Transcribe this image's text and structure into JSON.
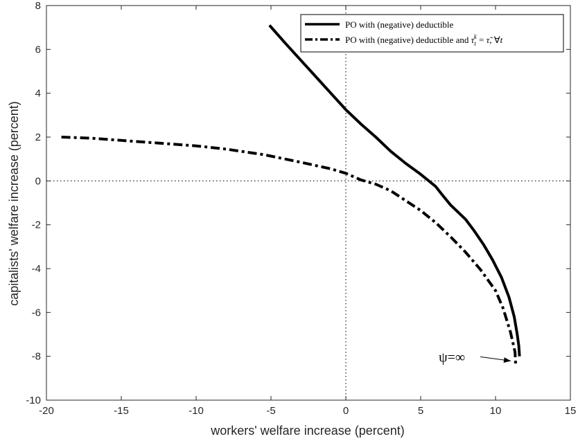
{
  "chart_data": {
    "type": "line",
    "xlabel": "workers' welfare increase (percent)",
    "ylabel": "capitalists' welfare increase (percent)",
    "xlim": [
      -20,
      15
    ],
    "ylim": [
      -10,
      8
    ],
    "xticks": [
      -20,
      -15,
      -10,
      -5,
      0,
      5,
      10,
      15
    ],
    "yticks": [
      8,
      6,
      4,
      2,
      0,
      -2,
      -4,
      -6,
      -8,
      -10
    ],
    "grid": false,
    "reference_lines": [
      {
        "orientation": "vertical",
        "value": 0,
        "style": "dotted"
      },
      {
        "orientation": "horizontal",
        "value": 0,
        "style": "dotted"
      }
    ],
    "legend_position": "top-right",
    "series": [
      {
        "name": "PO with (negative) deductible",
        "style": "solid",
        "color": "#000000",
        "x": [
          -5.1,
          -4,
          -3,
          -2,
          -1,
          0,
          1,
          2,
          3,
          4,
          5,
          6,
          6.4,
          7,
          8,
          8.6,
          9.2,
          9.8,
          10.4,
          10.9,
          11.25,
          11.45,
          11.55,
          11.6
        ],
        "y": [
          7.1,
          6.25,
          5.5,
          4.75,
          4.0,
          3.25,
          2.6,
          2.0,
          1.35,
          0.8,
          0.3,
          -0.25,
          -0.6,
          -1.1,
          -1.75,
          -2.3,
          -2.9,
          -3.6,
          -4.4,
          -5.3,
          -6.2,
          -7.0,
          -7.5,
          -8.0
        ]
      },
      {
        "name": "PO with (negative) deductible and τ_t^k = τ̃, ∀t",
        "style": "dash-dot",
        "color": "#000000",
        "x": [
          -19,
          -17,
          -15,
          -12,
          -10,
          -8,
          -5.5,
          -3,
          -1,
          0,
          1,
          2,
          3,
          4,
          5,
          6,
          7,
          8,
          9,
          10,
          10.5,
          11.0,
          11.3,
          11.35
        ],
        "y": [
          2.0,
          1.95,
          1.85,
          1.7,
          1.6,
          1.45,
          1.2,
          0.85,
          0.55,
          0.35,
          0.05,
          -0.15,
          -0.45,
          -0.9,
          -1.35,
          -1.9,
          -2.55,
          -3.25,
          -4.05,
          -5.0,
          -5.8,
          -6.9,
          -7.8,
          -8.45
        ]
      }
    ],
    "annotations": [
      {
        "text": "ψ=∞",
        "arrow_to": [
          11.3,
          -8.15
        ]
      }
    ]
  }
}
